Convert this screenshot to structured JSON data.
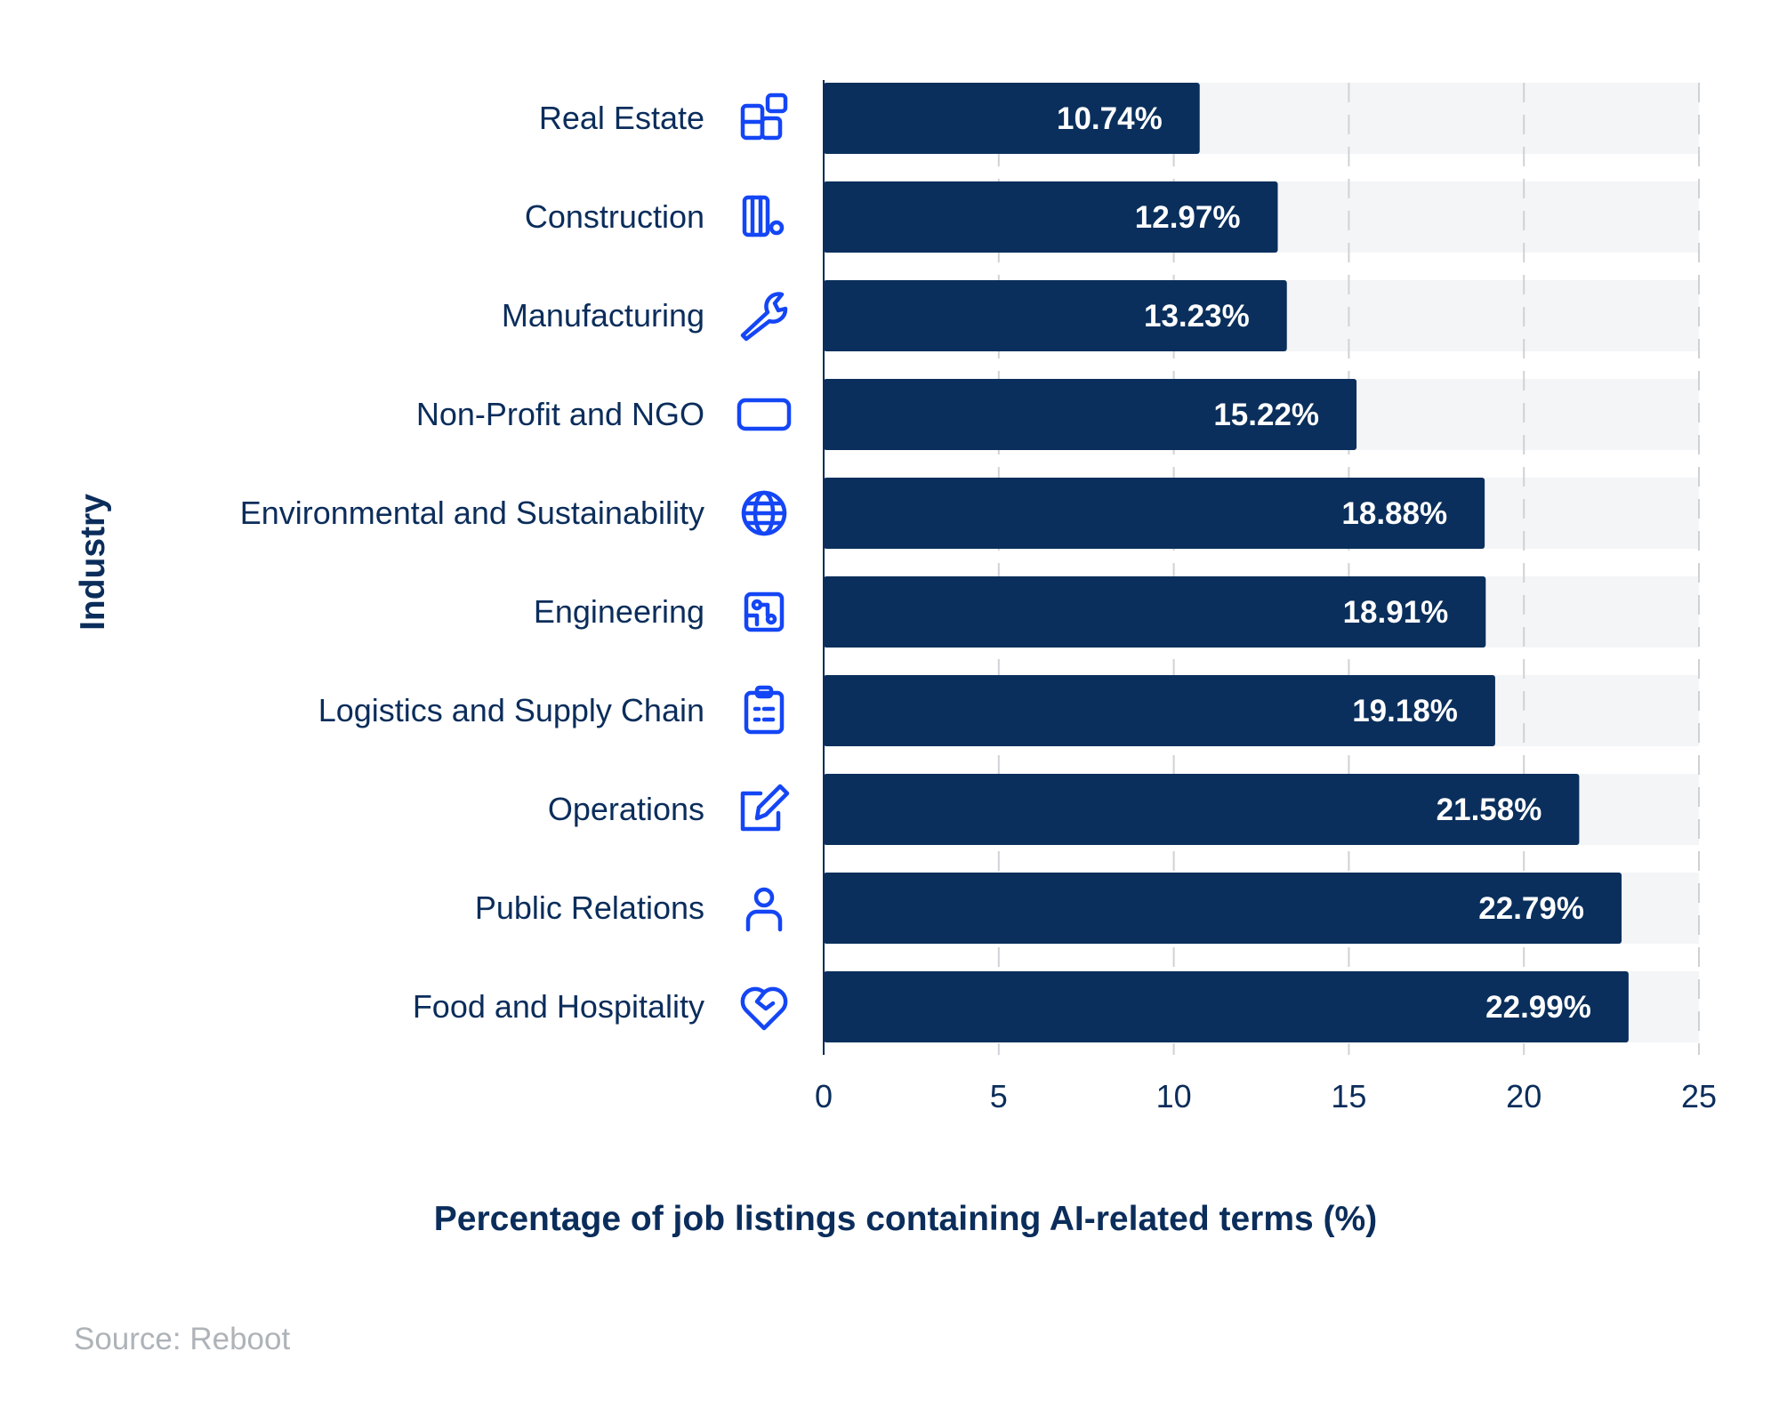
{
  "chart_data": {
    "type": "bar",
    "orientation": "horizontal",
    "categories": [
      "Real Estate",
      "Construction",
      "Manufacturing",
      "Non-Profit and NGO",
      "Environmental and Sustainability",
      "Engineering",
      "Logistics and Supply Chain",
      "Operations",
      "Public Relations",
      "Food and Hospitality"
    ],
    "values": [
      10.74,
      12.97,
      13.23,
      15.22,
      18.88,
      18.91,
      19.18,
      21.58,
      22.79,
      22.99
    ],
    "data_labels": [
      "10.74%",
      "12.97%",
      "13.23%",
      "15.22%",
      "18.88%",
      "18.91%",
      "19.18%",
      "21.58%",
      "22.79%",
      "22.99%"
    ],
    "icons": [
      "buildings-icon",
      "construction-icon",
      "wrench-icon",
      "rectangle-icon",
      "globe-icon",
      "circuit-icon",
      "clipboard-list-icon",
      "pencil-square-icon",
      "person-icon",
      "heart-handshake-icon"
    ],
    "xlabel": "Percentage of job listings containing AI-related terms (%)",
    "ylabel": "Industry",
    "xlim": [
      0,
      25
    ],
    "xticks": [
      "0",
      "5",
      "10",
      "15",
      "20",
      "25"
    ],
    "grid": true,
    "colors": {
      "bar": "#0a2f5c",
      "track": "#f4f5f7",
      "icon": "#1446f5",
      "text": "#0b2d5b",
      "source": "#aeb3b8"
    }
  },
  "source": "Source: Reboot"
}
